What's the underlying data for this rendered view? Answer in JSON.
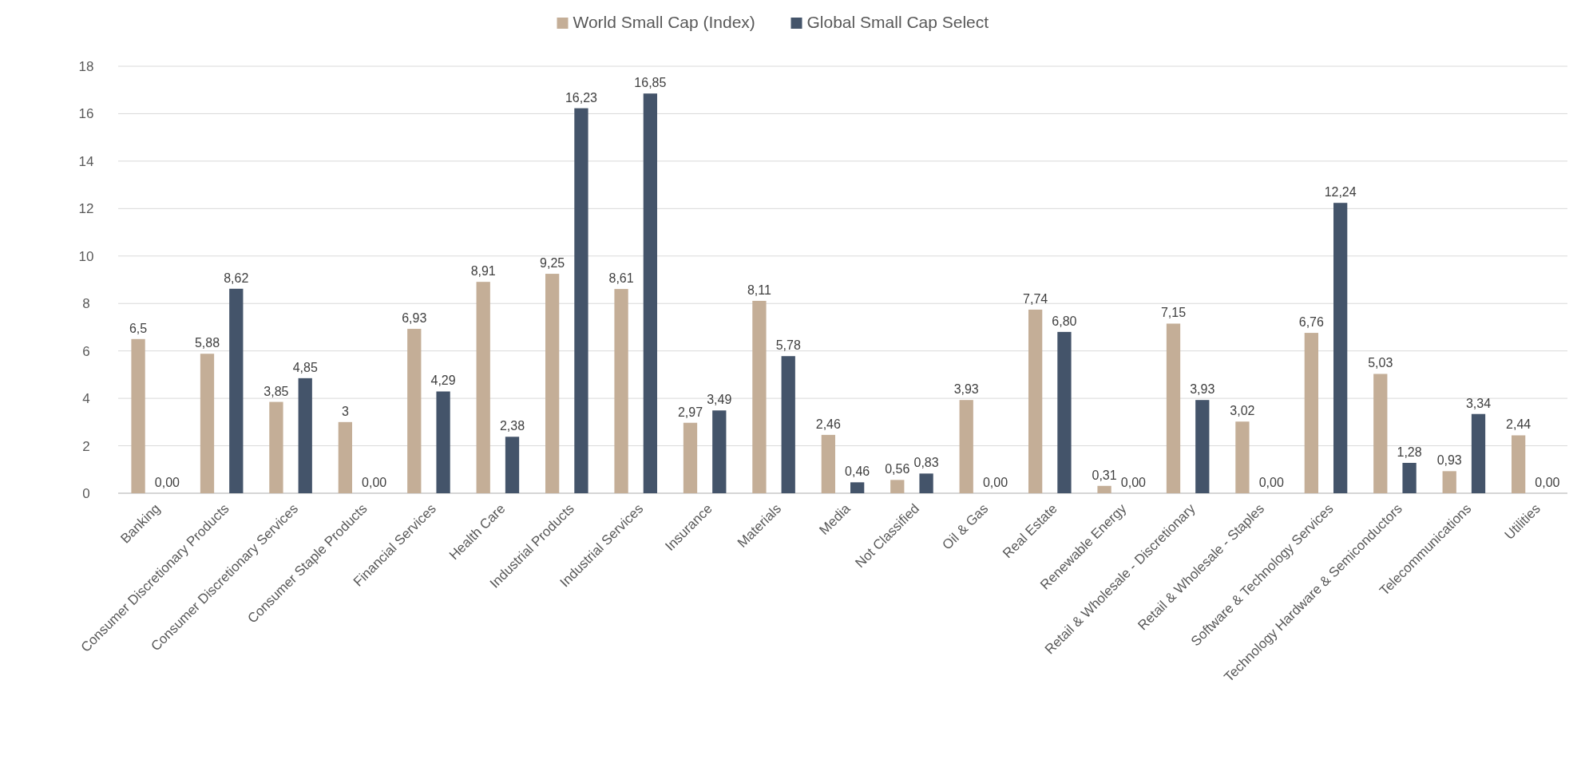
{
  "chart_data": {
    "type": "bar",
    "categories": [
      "Banking",
      "Consumer Discretionary Products",
      "Consumer Discretionary Services",
      "Consumer Staple Products",
      "Financial Services",
      "Health Care",
      "Industrial Products",
      "Industrial Services",
      "Insurance",
      "Materials",
      "Media",
      "Not Classified",
      "Oil & Gas",
      "Real Estate",
      "Renewable Energy",
      "Retail & Wholesale - Discretionary",
      "Retail & Wholesale - Staples",
      "Software & Technology Services",
      "Technology Hardware & Semiconductors",
      "Telecommunications",
      "Utilities"
    ],
    "series": [
      {
        "name": "World Small Cap (Index)",
        "color": "#c4ae97",
        "values": [
          6.5,
          5.88,
          3.85,
          3,
          6.93,
          8.91,
          9.25,
          8.61,
          2.97,
          8.11,
          2.46,
          0.56,
          3.93,
          7.74,
          0.31,
          7.15,
          3.02,
          6.76,
          5.03,
          0.93,
          2.44
        ],
        "value_labels": [
          "6,5",
          "5,88",
          "3,85",
          "3",
          "6,93",
          "8,91",
          "9,25",
          "8,61",
          "2,97",
          "8,11",
          "2,46",
          "0,56",
          "3,93",
          "7,74",
          "0,31",
          "7,15",
          "3,02",
          "6,76",
          "5,03",
          "0,93",
          "2,44"
        ]
      },
      {
        "name": "Global Small Cap Select",
        "color": "#44546a",
        "values": [
          0,
          8.62,
          4.85,
          0,
          4.29,
          2.38,
          16.23,
          16.85,
          3.49,
          5.78,
          0.46,
          0.83,
          0,
          6.8,
          0,
          3.93,
          0,
          12.24,
          1.28,
          3.34,
          0
        ],
        "value_labels": [
          "0,00",
          "8,62",
          "4,85",
          "0,00",
          "4,29",
          "2,38",
          "16,23",
          "16,85",
          "3,49",
          "5,78",
          "0,46",
          "0,83",
          "0,00",
          "6,80",
          "0,00",
          "3,93",
          "0,00",
          "12,24",
          "1,28",
          "3,34",
          "0,00"
        ]
      }
    ],
    "ylim": [
      0,
      18
    ],
    "yticks": [
      0,
      2,
      4,
      6,
      8,
      10,
      12,
      14,
      16,
      18
    ],
    "grid": "y",
    "legend": "top"
  }
}
